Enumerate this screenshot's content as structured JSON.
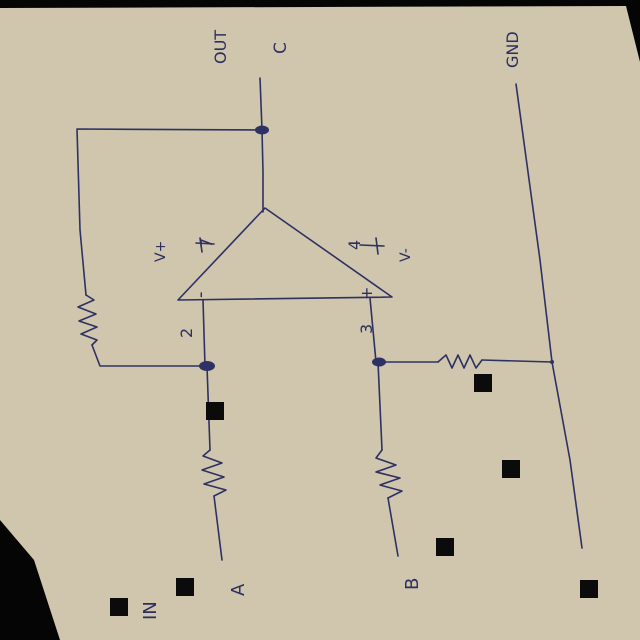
{
  "diagram": {
    "title": "Op-amp difference amplifier (hand-drawn)",
    "colors": {
      "paper": "#cfc6ad",
      "ink": "#2e3163",
      "background": "#050505",
      "marker": "#0b0b0b"
    },
    "labels": {
      "out": "OUT",
      "out_node": "C",
      "gnd": "GND",
      "vplus": "V+",
      "vminus": "V-",
      "pin7": "7",
      "pin4": "4",
      "pin2": "2",
      "pin3": "3",
      "minus_sign": "-",
      "plus_sign": "+",
      "input_in": "IN",
      "node_a": "A",
      "node_b": "B"
    },
    "components": [
      {
        "name": "op-amp",
        "kind": "operational amplifier"
      },
      {
        "name": "feedback-resistor",
        "kind": "resistor"
      },
      {
        "name": "input-resistor-a",
        "kind": "resistor"
      },
      {
        "name": "input-resistor-b",
        "kind": "resistor"
      },
      {
        "name": "ground-resistor",
        "kind": "resistor"
      }
    ]
  }
}
